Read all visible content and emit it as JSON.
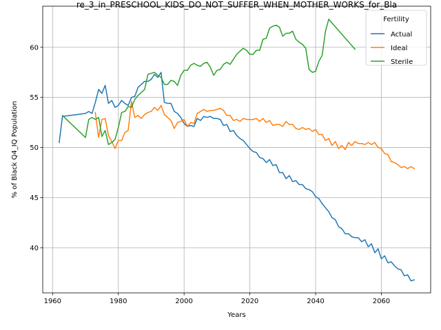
{
  "chart_data": {
    "type": "line",
    "title": "re_3_in_PRESCHOOL_KIDS_DO_NOT_SUFFER_WHEN_MOTHER_WORKS_for_Bla",
    "xlabel": "Years",
    "ylabel": "% of Black Q4_IQ Population",
    "xlim": [
      1957,
      2075
    ],
    "ylim": [
      35.5,
      64.1
    ],
    "xticks": [
      1960,
      1980,
      2000,
      2020,
      2040,
      2060
    ],
    "yticks": [
      40,
      45,
      50,
      55,
      60
    ],
    "grid": true,
    "legend": {
      "title": "Fertility",
      "placement": "top-right"
    },
    "colors": {
      "Actual": "#1f77b4",
      "Ideal": "#ff7f0e",
      "Sterile": "#2ca02c"
    },
    "series": [
      {
        "name": "Actual",
        "x": [
          1962,
          1963,
          1970,
          1971,
          1972,
          1973,
          1974,
          1975,
          1976,
          1977,
          1978,
          1979,
          1980,
          1981,
          1982,
          1983,
          1984,
          1985,
          1986,
          1987,
          1988,
          1989,
          1990,
          1991,
          1992,
          1993,
          1994,
          1995,
          1996,
          1997,
          1998,
          1999,
          2000,
          2001,
          2002,
          2003,
          2004,
          2005,
          2006,
          2007,
          2008,
          2009,
          2010,
          2011,
          2012,
          2013,
          2014,
          2015,
          2016,
          2017,
          2018,
          2019,
          2020,
          2021,
          2022,
          2023,
          2024,
          2025,
          2026,
          2027,
          2028,
          2029,
          2030,
          2031,
          2032,
          2033,
          2034,
          2035,
          2036,
          2037,
          2038,
          2039,
          2040,
          2041,
          2042,
          2043,
          2044,
          2045,
          2046,
          2047,
          2048,
          2049,
          2050,
          2051,
          2052,
          2053,
          2054,
          2055,
          2056,
          2057,
          2058,
          2059,
          2060,
          2061,
          2062,
          2063,
          2064,
          2065,
          2066,
          2067,
          2068,
          2069,
          2070
        ],
        "values": [
          50.5,
          53.1,
          53.4,
          53.6,
          53.4,
          54.5,
          55.8,
          55.4,
          56.2,
          54.4,
          54.7,
          54.0,
          54.2,
          54.7,
          54.4,
          54.2,
          55.0,
          55.1,
          56.0,
          56.3,
          56.6,
          56.6,
          56.8,
          57.3,
          57.0,
          57.5,
          54.5,
          54.4,
          54.4,
          53.6,
          53.4,
          53.0,
          52.4,
          52.1,
          52.2,
          52.1,
          52.9,
          52.7,
          53.1,
          53.0,
          53.1,
          52.9,
          52.9,
          52.8,
          52.2,
          52.3,
          51.6,
          51.7,
          51.2,
          50.9,
          50.7,
          50.3,
          49.9,
          49.6,
          49.5,
          49.0,
          48.9,
          48.5,
          48.8,
          48.2,
          48.3,
          47.5,
          47.5,
          46.9,
          47.2,
          46.6,
          46.7,
          46.3,
          46.3,
          45.9,
          45.8,
          45.6,
          45.1,
          44.9,
          44.4,
          44.0,
          43.6,
          43.0,
          42.8,
          42.1,
          41.9,
          41.4,
          41.4,
          41.1,
          41.0,
          41.0,
          40.6,
          40.8,
          40.1,
          40.4,
          39.5,
          39.9,
          38.9,
          39.2,
          38.5,
          38.6,
          38.2,
          37.9,
          37.8,
          37.2,
          37.3,
          36.7,
          36.8
        ]
      },
      {
        "name": "Ideal",
        "x": [
          1973,
          1974,
          1975,
          1976,
          1977,
          1978,
          1979,
          1980,
          1981,
          1982,
          1983,
          1984,
          1985,
          1986,
          1987,
          1988,
          1989,
          1990,
          1991,
          1992,
          1993,
          1994,
          1995,
          1996,
          1997,
          1998,
          1999,
          2000,
          2001,
          2002,
          2003,
          2004,
          2005,
          2006,
          2007,
          2008,
          2009,
          2010,
          2011,
          2012,
          2013,
          2014,
          2015,
          2016,
          2017,
          2018,
          2019,
          2020,
          2021,
          2022,
          2023,
          2024,
          2025,
          2026,
          2027,
          2028,
          2029,
          2030,
          2031,
          2032,
          2033,
          2034,
          2035,
          2036,
          2037,
          2038,
          2039,
          2040,
          2041,
          2042,
          2043,
          2044,
          2045,
          2046,
          2047,
          2048,
          2049,
          2050,
          2051,
          2052,
          2053,
          2054,
          2055,
          2056,
          2057,
          2058,
          2059,
          2060,
          2061,
          2062,
          2063,
          2064,
          2065,
          2066,
          2067,
          2068,
          2069,
          2070
        ],
        "values": [
          53.5,
          51.0,
          52.8,
          52.9,
          51.2,
          50.6,
          49.9,
          50.7,
          50.7,
          51.5,
          51.7,
          54.6,
          53.0,
          53.2,
          52.9,
          53.3,
          53.5,
          53.6,
          54.0,
          53.7,
          54.2,
          53.3,
          53.0,
          52.7,
          51.9,
          52.5,
          52.6,
          52.8,
          52.1,
          52.5,
          52.4,
          53.4,
          53.6,
          53.8,
          53.6,
          53.7,
          53.7,
          53.8,
          53.9,
          53.7,
          53.2,
          53.2,
          52.7,
          52.8,
          52.6,
          52.9,
          52.8,
          52.8,
          52.8,
          52.9,
          52.6,
          52.9,
          52.5,
          52.7,
          52.2,
          52.3,
          52.3,
          52.1,
          52.6,
          52.3,
          52.3,
          51.9,
          51.8,
          52.0,
          51.8,
          51.9,
          51.6,
          51.8,
          51.3,
          51.3,
          50.7,
          50.9,
          50.2,
          50.6,
          49.9,
          50.2,
          49.8,
          50.5,
          50.2,
          50.6,
          50.4,
          50.4,
          50.3,
          50.5,
          50.3,
          50.5,
          50.0,
          49.9,
          49.4,
          49.3,
          48.6,
          48.5,
          48.3,
          48.0,
          48.1,
          47.9,
          48.1,
          47.9
        ]
      },
      {
        "name": "Sterile",
        "x": [
          1963,
          1970,
          1971,
          1972,
          1973,
          1974,
          1975,
          1976,
          1977,
          1978,
          1979,
          1980,
          1981,
          1982,
          1983,
          1984,
          1985,
          1986,
          1987,
          1988,
          1989,
          1990,
          1991,
          1992,
          1993,
          1994,
          1995,
          1996,
          1997,
          1998,
          1999,
          2000,
          2001,
          2002,
          2003,
          2004,
          2005,
          2006,
          2007,
          2008,
          2009,
          2010,
          2011,
          2012,
          2013,
          2014,
          2015,
          2016,
          2017,
          2018,
          2019,
          2020,
          2021,
          2022,
          2023,
          2024,
          2025,
          2026,
          2027,
          2028,
          2029,
          2030,
          2031,
          2032,
          2033,
          2034,
          2035,
          2036,
          2037,
          2038,
          2039,
          2040,
          2041,
          2042,
          2043,
          2044,
          2052
        ],
        "values": [
          53.2,
          51.0,
          52.8,
          53.0,
          52.8,
          53.0,
          51.1,
          51.7,
          50.3,
          50.5,
          50.8,
          52.0,
          53.5,
          53.6,
          54.1,
          54.0,
          54.8,
          55.2,
          55.5,
          55.8,
          57.3,
          57.4,
          57.5,
          57.2,
          57.0,
          56.3,
          56.3,
          56.7,
          56.6,
          56.2,
          57.2,
          57.7,
          57.7,
          58.2,
          58.4,
          58.2,
          58.1,
          58.4,
          58.5,
          58.0,
          57.2,
          57.7,
          57.8,
          58.3,
          58.5,
          58.3,
          58.8,
          59.3,
          59.6,
          59.9,
          59.7,
          59.3,
          59.3,
          59.7,
          59.7,
          60.8,
          60.9,
          61.9,
          62.1,
          62.2,
          62.0,
          61.1,
          61.4,
          61.4,
          61.6,
          60.8,
          60.5,
          60.3,
          59.9,
          57.8,
          57.5,
          57.6,
          58.6,
          59.2,
          61.6,
          62.8,
          59.8
        ]
      }
    ]
  }
}
